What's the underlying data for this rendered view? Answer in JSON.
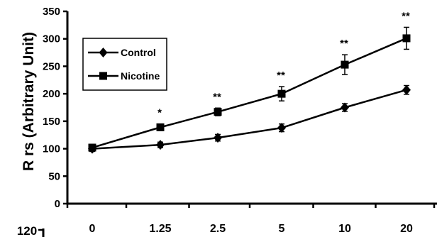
{
  "chart_data": {
    "type": "line",
    "title": "",
    "xlabel": "",
    "ylabel": "R rs (Arbitrary Unit)",
    "categories": [
      "0",
      "1.25",
      "2.5",
      "5",
      "10",
      "20"
    ],
    "ylim": [
      0,
      350
    ],
    "yticks": [
      0,
      50,
      100,
      150,
      200,
      250,
      300,
      350
    ],
    "grid": false,
    "legend_position": "upper-left",
    "series": [
      {
        "name": "Control",
        "marker": "diamond",
        "values": [
          100,
          107,
          120,
          138,
          175,
          207
        ],
        "errors": [
          5,
          5,
          6,
          7,
          7,
          8
        ]
      },
      {
        "name": "Nicotine",
        "marker": "square",
        "values": [
          102,
          139,
          167,
          200,
          253,
          301
        ],
        "errors": [
          6,
          6,
          7,
          13,
          18,
          20
        ]
      }
    ],
    "significance": [
      "",
      "*",
      "**",
      "**",
      "**",
      "**"
    ],
    "partial_next_axis_label": "120"
  }
}
